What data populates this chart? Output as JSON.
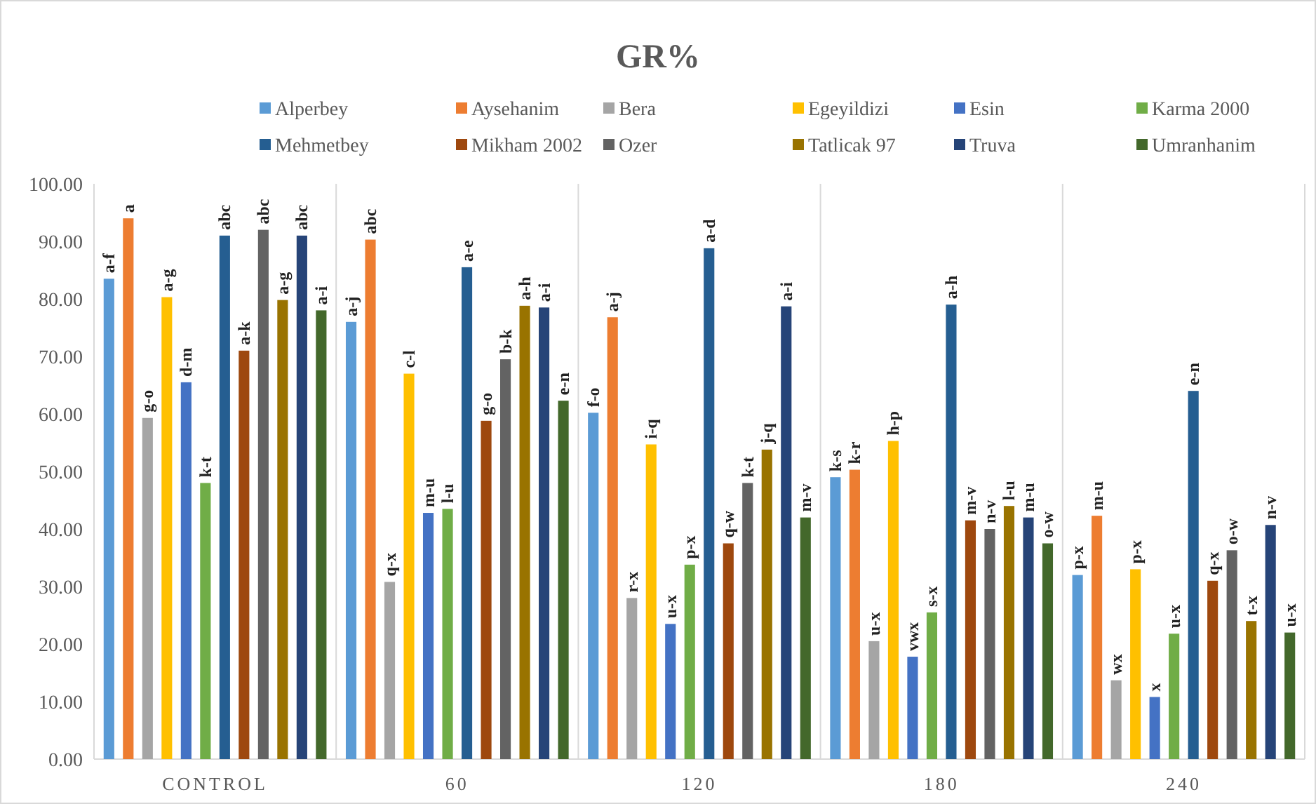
{
  "chart_data": {
    "type": "bar",
    "title": "GR%",
    "categories": [
      "CONTROL",
      "60",
      "120",
      "180",
      "240"
    ],
    "ylim": [
      0,
      100
    ],
    "yticks": [
      {
        "value": 0,
        "label": "0.00"
      },
      {
        "value": 10,
        "label": "10.00"
      },
      {
        "value": 20,
        "label": "20.00"
      },
      {
        "value": 30,
        "label": "30.00"
      },
      {
        "value": 40,
        "label": "40.00"
      },
      {
        "value": 50,
        "label": "50.00"
      },
      {
        "value": 60,
        "label": "60.00"
      },
      {
        "value": 70,
        "label": "70.00"
      },
      {
        "value": 80,
        "label": "80.00"
      },
      {
        "value": 90,
        "label": "90.00"
      },
      {
        "value": 100,
        "label": "100.00"
      }
    ],
    "grid": "x",
    "legend": "top",
    "series": [
      {
        "name": "Alperbey",
        "color": "#5b9bd5",
        "values": [
          83.5,
          76,
          60.2,
          49,
          32
        ],
        "value_labels": [
          "a-f",
          "a-j",
          "f-o",
          "k-s",
          "p-x"
        ]
      },
      {
        "name": "Aysehanim",
        "color": "#ed7d31",
        "values": [
          94,
          90.3,
          76.8,
          50.3,
          42.3
        ],
        "value_labels": [
          "a",
          "abc",
          "a-j",
          "k-r",
          "m-u"
        ]
      },
      {
        "name": "Bera",
        "color": "#a5a5a5",
        "values": [
          59.3,
          30.8,
          28,
          20.5,
          13.7
        ],
        "value_labels": [
          "g-o",
          "q-x",
          "r-x",
          "u-x",
          "wx"
        ]
      },
      {
        "name": "Egeyildizi",
        "color": "#ffc000",
        "values": [
          80.3,
          67,
          54.7,
          55.3,
          33
        ],
        "value_labels": [
          "a-g",
          "c-l",
          "i-q",
          "h-p",
          "p-x"
        ]
      },
      {
        "name": "Esin",
        "color": "#4472c4",
        "values": [
          65.5,
          42.8,
          23.5,
          17.8,
          10.8
        ],
        "value_labels": [
          "d-m",
          "m-u",
          "u-x",
          "vwx",
          "x"
        ]
      },
      {
        "name": "Karma 2000",
        "color": "#70ad47",
        "values": [
          48,
          43.5,
          33.8,
          25.5,
          21.8
        ],
        "value_labels": [
          "k-t",
          "l-u",
          "p-x",
          "s-x",
          "u-x"
        ]
      },
      {
        "name": "Mehmetbey",
        "color": "#255e91",
        "values": [
          91,
          85.5,
          88.8,
          79,
          64
        ],
        "value_labels": [
          "abc",
          "a-e",
          "a-d",
          "a-h",
          "e-n"
        ]
      },
      {
        "name": "Mikham 2002",
        "color": "#9e480e",
        "values": [
          71,
          58.8,
          37.5,
          41.5,
          31
        ],
        "value_labels": [
          "a-k",
          "g-o",
          "q-w",
          "m-v",
          "q-x"
        ]
      },
      {
        "name": "Ozer",
        "color": "#636363",
        "values": [
          92,
          69.5,
          48,
          40,
          36.3
        ],
        "value_labels": [
          "abc",
          "b-k",
          "k-t",
          "n-v",
          "o-w"
        ]
      },
      {
        "name": "Tatlicak 97",
        "color": "#997300",
        "values": [
          79.8,
          78.8,
          53.8,
          44,
          24
        ],
        "value_labels": [
          "a-g",
          "a-h",
          "j-q",
          "l-u",
          "t-x"
        ]
      },
      {
        "name": "Truva",
        "color": "#264478",
        "values": [
          91,
          78.5,
          78.7,
          42,
          40.7
        ],
        "value_labels": [
          "abc",
          "a-i",
          "a-i",
          "m-u",
          "n-v"
        ]
      },
      {
        "name": "Umranhanim",
        "color": "#43682b",
        "values": [
          78,
          62.3,
          42,
          37.5,
          22
        ],
        "value_labels": [
          "a-i",
          "e-n",
          "m-v",
          "o-w",
          "u-x"
        ]
      }
    ]
  }
}
